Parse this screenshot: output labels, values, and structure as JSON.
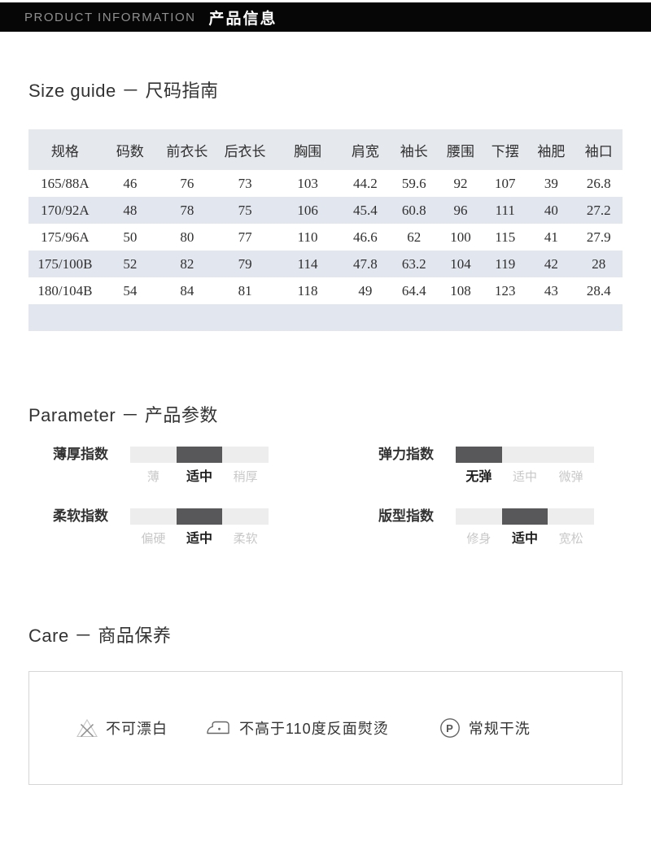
{
  "header": {
    "title_en": "PRODUCT INFORMATION",
    "title_zh": "产品信息"
  },
  "size_guide": {
    "heading": "Size guide － 尺码指南",
    "table": {
      "columns": [
        "规格",
        "码数",
        "前衣长",
        "后衣长",
        "胸围",
        "肩宽",
        "袖长",
        "腰围",
        "下摆",
        "袖肥",
        "袖口"
      ],
      "rows": [
        [
          "165/88A",
          "46",
          "76",
          "73",
          "103",
          "44.2",
          "59.6",
          "92",
          "107",
          "39",
          "26.8"
        ],
        [
          "170/92A",
          "48",
          "78",
          "75",
          "106",
          "45.4",
          "60.8",
          "96",
          "111",
          "40",
          "27.2"
        ],
        [
          "175/96A",
          "50",
          "80",
          "77",
          "110",
          "46.6",
          "62",
          "100",
          "115",
          "41",
          "27.9"
        ],
        [
          "175/100B",
          "52",
          "82",
          "79",
          "114",
          "47.8",
          "63.2",
          "104",
          "119",
          "42",
          "28"
        ],
        [
          "180/104B",
          "54",
          "84",
          "81",
          "118",
          "49",
          "64.4",
          "108",
          "123",
          "43",
          "28.4"
        ]
      ]
    }
  },
  "parameters": {
    "heading": "Parameter － 产品参数",
    "items": [
      {
        "label": "薄厚指数",
        "options": [
          "薄",
          "适中",
          "稍厚"
        ],
        "selected": 1
      },
      {
        "label": "弹力指数",
        "options": [
          "无弹",
          "适中",
          "微弹"
        ],
        "selected": 0
      },
      {
        "label": "柔软指数",
        "options": [
          "偏硬",
          "适中",
          "柔软"
        ],
        "selected": 1
      },
      {
        "label": "版型指数",
        "options": [
          "修身",
          "适中",
          "宽松"
        ],
        "selected": 1
      }
    ]
  },
  "care": {
    "heading": "Care － 商品保养",
    "items": [
      {
        "icon": "do-not-bleach-icon",
        "label": "不可漂白"
      },
      {
        "icon": "iron-max-110-icon",
        "label": "不高于110度反面熨烫"
      },
      {
        "icon": "dry-clean-p-icon",
        "label": "常规干洗"
      }
    ]
  },
  "colors": {
    "banner_bg": "#060606",
    "banner_en_text": "#8f8f8f",
    "banner_zh_text": "#ffffff",
    "table_header_bg": "#e5e8ec",
    "table_stripe_bg": "#e2e6ee",
    "param_track": "#ededed",
    "param_fill": "#58585a",
    "option_inactive": "#c8c8c8",
    "option_active": "#1f1f1f",
    "care_border": "#d6d6d6"
  }
}
